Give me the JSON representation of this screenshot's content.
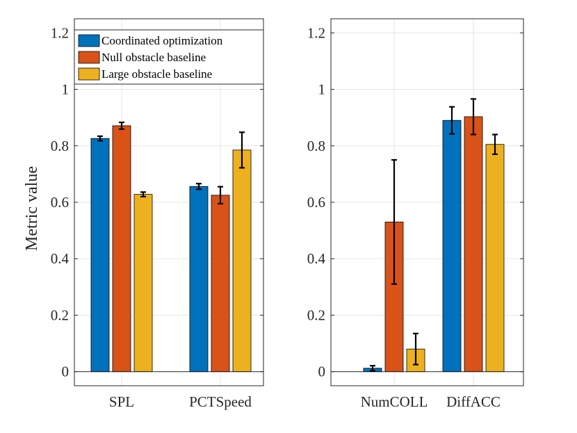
{
  "chart_data": [
    {
      "type": "bar",
      "ylabel": "Metric value",
      "ylim": [
        -0.05,
        1.25
      ],
      "yticks": [
        "0",
        "0.2",
        "0.4",
        "0.6",
        "0.8",
        "1",
        "1.2"
      ],
      "ytick_values": [
        0,
        0.2,
        0.4,
        0.6,
        0.8,
        1.0,
        1.2
      ],
      "grid": true,
      "legend_position": "top-left",
      "categories": [
        "SPL",
        "PCTSpeed"
      ],
      "series": [
        {
          "name": "Coordinated optimization",
          "color": "#0072BD",
          "values": [
            0.826,
            0.656
          ],
          "err": [
            0.008,
            0.01
          ]
        },
        {
          "name": "Null obstacle baseline",
          "color": "#D95319",
          "values": [
            0.871,
            0.625
          ],
          "err": [
            0.012,
            0.03
          ]
        },
        {
          "name": "Large obstacle baseline",
          "color": "#EDB120",
          "values": [
            0.628,
            0.785
          ],
          "err": [
            0.008,
            0.063
          ]
        }
      ]
    },
    {
      "type": "bar",
      "ylabel": "",
      "ylim": [
        -0.05,
        1.25
      ],
      "yticks": [
        "0",
        "0.2",
        "0.4",
        "0.6",
        "0.8",
        "1",
        "1.2"
      ],
      "ytick_values": [
        0,
        0.2,
        0.4,
        0.6,
        0.8,
        1.0,
        1.2
      ],
      "grid": true,
      "categories": [
        "NumCOLL",
        "DiffACC"
      ],
      "series": [
        {
          "name": "Coordinated optimization",
          "color": "#0072BD",
          "values": [
            0.012,
            0.89
          ],
          "err": [
            0.009,
            0.048
          ]
        },
        {
          "name": "Null obstacle baseline",
          "color": "#D95319",
          "values": [
            0.53,
            0.903
          ],
          "err": [
            0.22,
            0.063
          ]
        },
        {
          "name": "Large obstacle baseline",
          "color": "#EDB120",
          "values": [
            0.08,
            0.805
          ],
          "err": [
            0.055,
            0.035
          ]
        }
      ]
    }
  ]
}
